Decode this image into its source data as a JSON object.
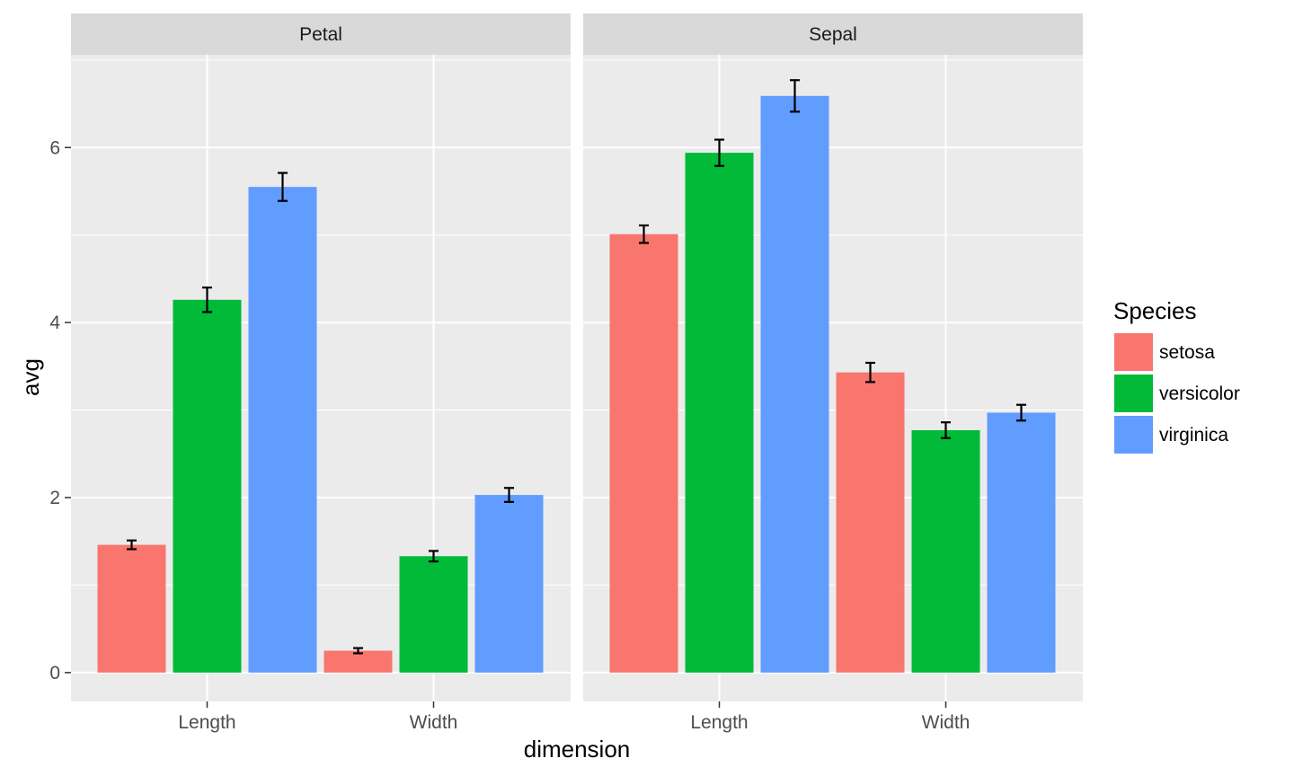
{
  "chart_data": {
    "type": "bar",
    "facet_by": "part",
    "facets": [
      {
        "name": "Petal",
        "categories": [
          "Length",
          "Width"
        ],
        "series": [
          {
            "name": "setosa",
            "values": [
              1.46,
              0.25
            ],
            "error": [
              0.05,
              0.03
            ]
          },
          {
            "name": "versicolor",
            "values": [
              4.26,
              1.33
            ],
            "error": [
              0.14,
              0.06
            ]
          },
          {
            "name": "virginica",
            "values": [
              5.55,
              2.03
            ],
            "error": [
              0.16,
              0.08
            ]
          }
        ]
      },
      {
        "name": "Sepal",
        "categories": [
          "Length",
          "Width"
        ],
        "series": [
          {
            "name": "setosa",
            "values": [
              5.01,
              3.43
            ],
            "error": [
              0.1,
              0.11
            ]
          },
          {
            "name": "versicolor",
            "values": [
              5.94,
              2.77
            ],
            "error": [
              0.15,
              0.09
            ]
          },
          {
            "name": "virginica",
            "values": [
              6.59,
              2.97
            ],
            "error": [
              0.18,
              0.09
            ]
          }
        ]
      }
    ],
    "xlabel": "dimension",
    "ylabel": "avg",
    "ylim": [
      -0.33,
      7.06
    ],
    "yticks": [
      0,
      2,
      4,
      6
    ],
    "ytick_labels": [
      "0",
      "2",
      "4",
      "6"
    ],
    "grid": true,
    "legend": {
      "title": "Species",
      "position": "right",
      "entries": [
        "setosa",
        "versicolor",
        "virginica"
      ]
    },
    "colors": {
      "setosa": "#F8766D",
      "versicolor": "#00BA38",
      "virginica": "#619CFF",
      "panel_background": "#EBEBEB",
      "strip_background": "#D9D9D9",
      "grid": "#FFFFFF",
      "error_bar": "#000000"
    }
  }
}
